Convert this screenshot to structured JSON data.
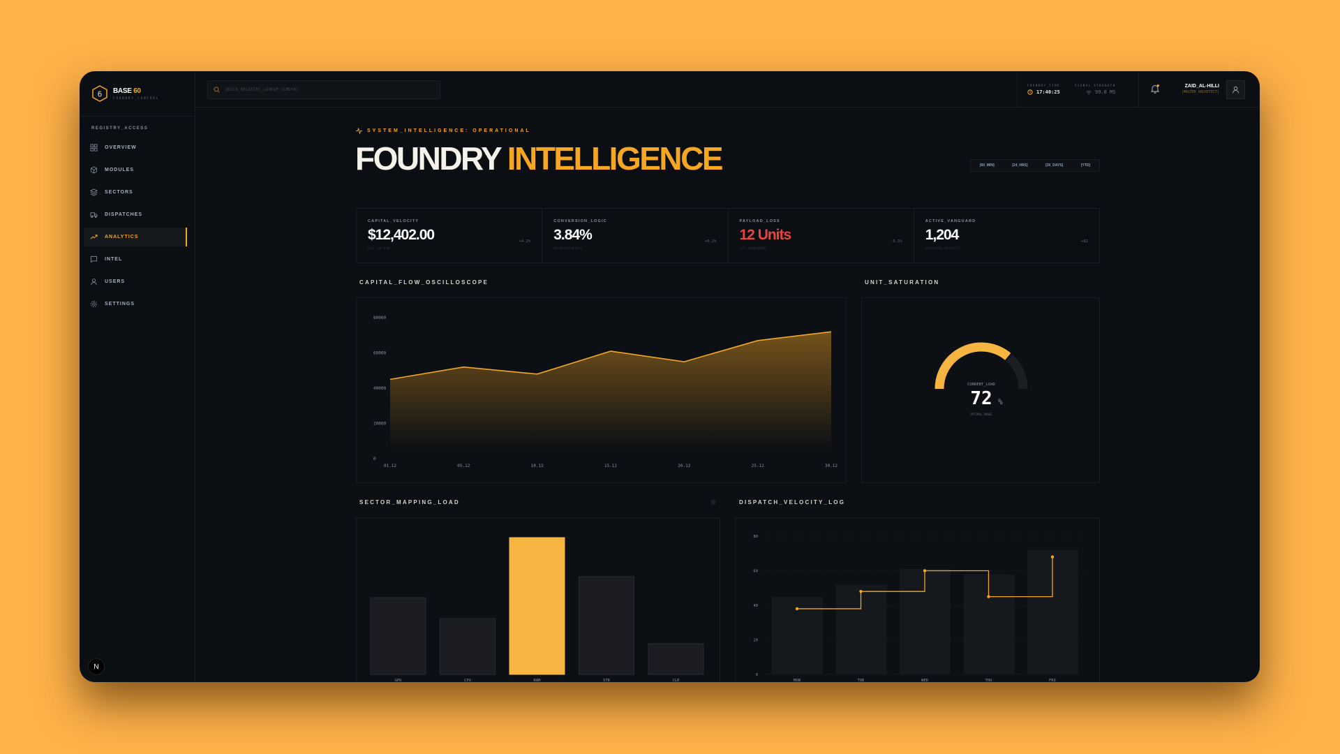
{
  "brand": {
    "name": "BASE",
    "accent": "60",
    "subtitle": "FOUNDRY_CONTROL"
  },
  "sidebar": {
    "section": "REGISTRY_ACCESS",
    "items": [
      {
        "label": "OVERVIEW",
        "icon": "grid-icon"
      },
      {
        "label": "MODULES",
        "icon": "cube-icon"
      },
      {
        "label": "SECTORS",
        "icon": "layers-icon"
      },
      {
        "label": "DISPATCHES",
        "icon": "truck-icon"
      },
      {
        "label": "ANALYTICS",
        "icon": "trending-up-icon",
        "active": true
      },
      {
        "label": "INTEL",
        "icon": "message-icon"
      },
      {
        "label": "USERS",
        "icon": "user-icon"
      },
      {
        "label": "SETTINGS",
        "icon": "gear-icon"
      }
    ],
    "dev_badge": "N"
  },
  "header": {
    "search_placeholder": "QUICK_REGISTRY_LOOKUP (CMD+K)",
    "time_label": "FOUNDRY_TIME",
    "time": "17:40:25",
    "signal_label": "SIGNAL_STRENGTH",
    "signal": "99.8 MS",
    "user_name": "ZAID_AL-HILLI",
    "user_role": "[MASTER_ARCHITECT]"
  },
  "page": {
    "tag": "SYSTEM_INTELLIGENCE: OPERATIONAL",
    "title_1": "FOUNDRY",
    "title_2": "INTELLIGENCE",
    "ranges": [
      "[60_MIN]",
      "[24_HRS]",
      "[30_DAYS]",
      "[YTD]"
    ]
  },
  "kpis": [
    {
      "label": "CAPITAL_VELOCITY",
      "value": "$12,402.00",
      "sub": "LAST_24H_FLOW",
      "delta": "+4.2%"
    },
    {
      "label": "CONVERSION_LOGIC",
      "value": "3.84%",
      "sub": "OPTIMIZATION_RATE",
      "delta": "+0.2%"
    },
    {
      "label": "PAYLOAD_LOSS",
      "value": "12 Units",
      "sub": "CART_ABANDONMENT",
      "delta": "-5.1%"
    },
    {
      "label": "ACTIVE_VANGUARD",
      "value": "1,204",
      "sub": "AUTHORIZED_ARCHITECTS",
      "delta": "+82"
    }
  ],
  "colors": {
    "accent": "#f5a623",
    "danger": "#e8453c",
    "background": "#0b0e13"
  },
  "chart_data": [
    {
      "title": "CAPITAL_FLOW_OSCILLOSCOPE",
      "type": "area",
      "categories": [
        "01.12",
        "05.12",
        "10.12",
        "15.12",
        "20.12",
        "25.12",
        "30.12"
      ],
      "values": [
        45000,
        52000,
        48000,
        61000,
        55000,
        67000,
        72000
      ],
      "yticks": [
        0,
        20000,
        40000,
        60000,
        80000
      ],
      "ylim": [
        0,
        80000
      ]
    },
    {
      "title": "UNIT_SATURATION",
      "type": "gauge",
      "label": "CURRENT_LOAD",
      "value": 72,
      "unit": "%",
      "sub": "OPTIMAL_RANGE"
    },
    {
      "title": "SECTOR_MAPPING_LOAD",
      "type": "bar",
      "categories": [
        "GPU",
        "CPU",
        "RAM",
        "STR",
        "CLR"
      ],
      "values": [
        55,
        40,
        98,
        70,
        22
      ],
      "highlight": "RAM"
    },
    {
      "title": "DISPATCH_VELOCITY_LOG",
      "type": "bar+step-line",
      "categories": [
        "MON",
        "TUE",
        "WED",
        "THU",
        "FRI"
      ],
      "bars": [
        45,
        52,
        61,
        58,
        72
      ],
      "line": [
        38,
        48,
        60,
        45,
        68
      ],
      "yticks": [
        0,
        20,
        40,
        60,
        80
      ],
      "ylim": [
        0,
        80
      ]
    }
  ]
}
